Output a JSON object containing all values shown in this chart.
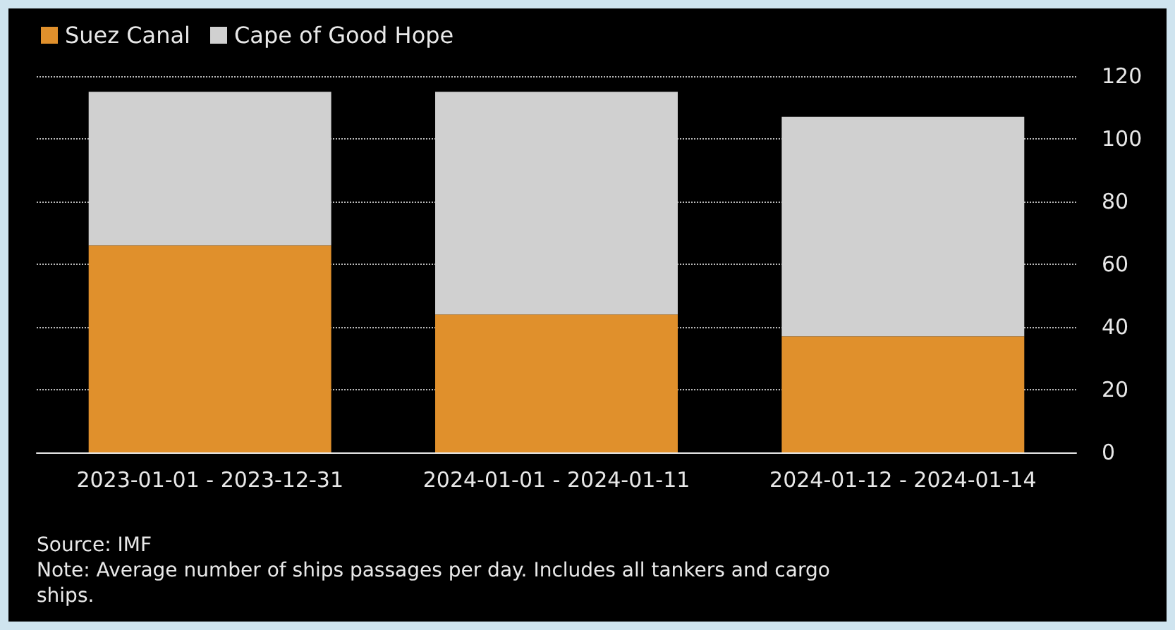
{
  "chart_data": {
    "type": "bar",
    "stacked": true,
    "categories": [
      "2023-01-01 - 2023-12-31",
      "2024-01-01 - 2024-01-11",
      "2024-01-12 - 2024-01-14"
    ],
    "series": [
      {
        "name": "Suez Canal",
        "color": "#e0902c",
        "values": [
          66,
          44,
          37
        ]
      },
      {
        "name": "Cape of Good Hope",
        "color": "#d0d0d0",
        "values": [
          49,
          71,
          70
        ]
      }
    ],
    "ylim": [
      0,
      120
    ],
    "yticks": [
      0,
      20,
      40,
      60,
      80,
      100,
      120
    ],
    "grid": "y",
    "legend": "top left",
    "annotations": [
      "Source: IMF",
      "Note: Average number of ships passages per day. Includes all tankers and cargo\nships."
    ]
  }
}
